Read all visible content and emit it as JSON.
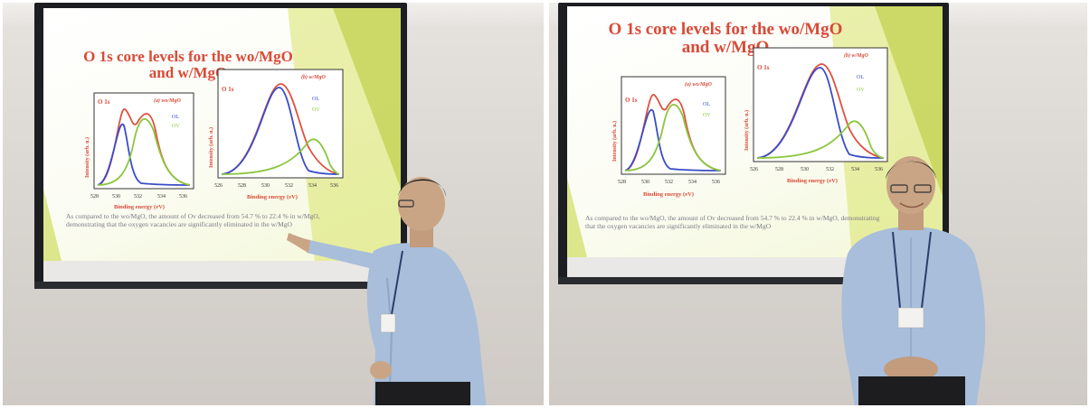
{
  "slide": {
    "title_line1": "O 1s core levels for the wo/MgO",
    "title_line2": "and w/MgO",
    "body_left": "As compared to the wo/MgO, the amount of Ov decreased from 54.7 % to 22.4 % in w/MgO, demonstrating that the oxygen vacancies are significantly eliminated in the w/MgO",
    "body_right": "As compared to the wo/MgO, the amount of Ov decreased from 54.7 % to 22.4 % in w/MgO, demonstrating that the oxygen vacancies are significantly eliminated in the w/MgO"
  },
  "plot_a": {
    "panel_label": "(a) wo/MgO",
    "corner_label": "O 1s",
    "legend": [
      "OL",
      "OV"
    ],
    "ylabel": "Intensity (arb. u.)",
    "xlabel": "Binding energy (eV)",
    "ticks": [
      "528",
      "530",
      "532",
      "534",
      "536"
    ]
  },
  "plot_b": {
    "panel_label": "(b) w/MgO",
    "corner_label": "O 1s",
    "legend": [
      "OL",
      "OV"
    ],
    "ylabel": "Intensity (arb. u.)",
    "xlabel": "Binding energy (eV)",
    "ticks": [
      "526",
      "528",
      "530",
      "532",
      "534",
      "536"
    ]
  },
  "colors": {
    "total": "#e0503e",
    "ol": "#3a4cc8",
    "ov": "#8cc63f",
    "title": "#d94a38",
    "accent_green": "#c8d84a"
  }
}
